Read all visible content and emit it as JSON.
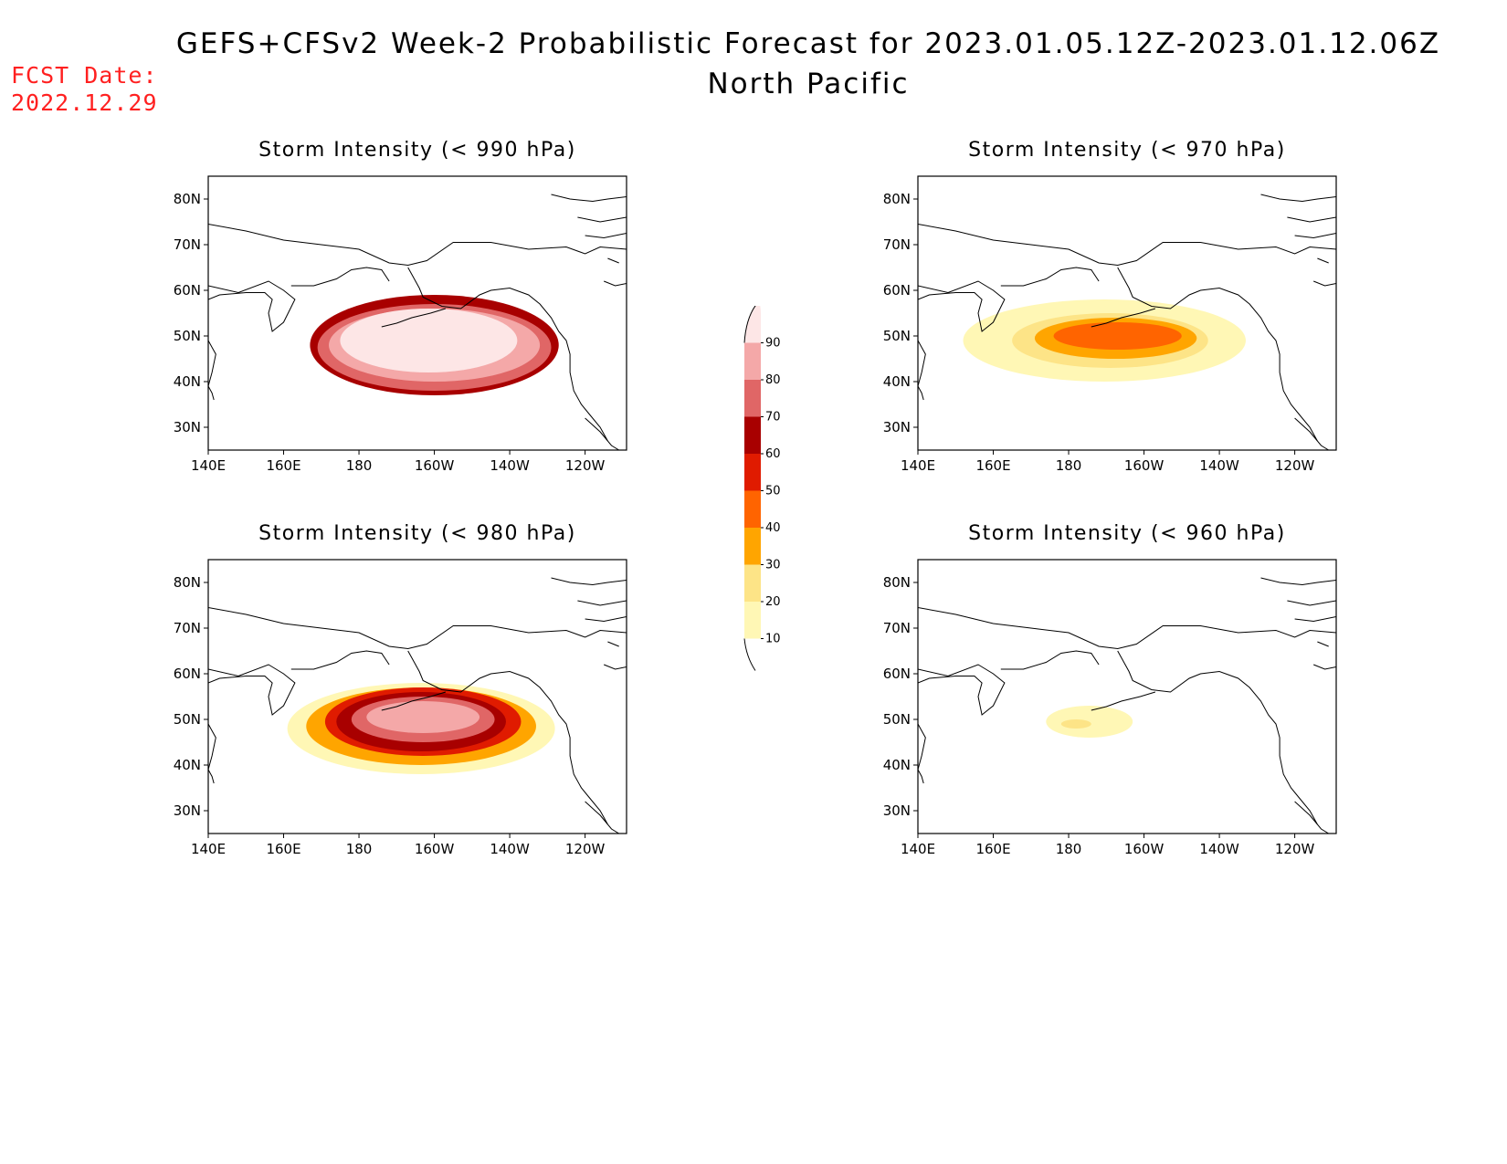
{
  "header": {
    "title": "GEFS+CFSv2 Week-2 Probabilistic Forecast for 2023.01.05.12Z-2023.01.12.06Z",
    "subtitle": "North Pacific",
    "fcst_label": "FCST Date:",
    "fcst_date": "2022.12.29"
  },
  "axes": {
    "lon_labels": [
      "140E",
      "160E",
      "180",
      "160W",
      "140W",
      "120W"
    ],
    "lat_labels": [
      "80N",
      "70N",
      "60N",
      "50N",
      "40N",
      "30N"
    ],
    "lon_values": [
      140,
      160,
      180,
      200,
      220,
      240
    ],
    "lat_values": [
      80,
      70,
      60,
      50,
      40,
      30
    ],
    "lon_range": [
      140,
      251
    ],
    "lat_range": [
      25,
      85
    ]
  },
  "colorbar": {
    "levels": [
      "10",
      "20",
      "30",
      "40",
      "50",
      "60",
      "70",
      "80",
      "90"
    ],
    "colors": [
      "#fff7b5",
      "#fde487",
      "#ffa500",
      "#ff6400",
      "#e01b00",
      "#a80000",
      "#e06666",
      "#f4a8a8",
      "#fde6e6"
    ]
  },
  "panels": [
    {
      "title": "Storm Intensity (< 990 hPa)",
      "regions": [
        {
          "level": 5,
          "lon": [
            167,
            233
          ],
          "lat": [
            37,
            59
          ]
        },
        {
          "level": 6,
          "lon": [
            169,
            231
          ],
          "lat": [
            38,
            57
          ]
        },
        {
          "level": 7,
          "lon": [
            172,
            228
          ],
          "lat": [
            40,
            56
          ]
        },
        {
          "level": 8,
          "lon": [
            175,
            222
          ],
          "lat": [
            42,
            56
          ]
        }
      ]
    },
    {
      "title": "Storm Intensity (< 970 hPa)",
      "regions": [
        {
          "level": 0,
          "lon": [
            152,
            227
          ],
          "lat": [
            40,
            58
          ]
        },
        {
          "level": 1,
          "lon": [
            165,
            217
          ],
          "lat": [
            43,
            55
          ]
        },
        {
          "level": 2,
          "lon": [
            171,
            214
          ],
          "lat": [
            45,
            54
          ]
        },
        {
          "level": 3,
          "lon": [
            176,
            210
          ],
          "lat": [
            47,
            53
          ]
        }
      ]
    },
    {
      "title": "Storm Intensity (< 980 hPa)",
      "regions": [
        {
          "level": 0,
          "lon": [
            161,
            232
          ],
          "lat": [
            38,
            58
          ]
        },
        {
          "level": 2,
          "lon": [
            166,
            227
          ],
          "lat": [
            40,
            57
          ]
        },
        {
          "level": 4,
          "lon": [
            171,
            223
          ],
          "lat": [
            42,
            57
          ]
        },
        {
          "level": 5,
          "lon": [
            174,
            219
          ],
          "lat": [
            43,
            56
          ]
        },
        {
          "level": 6,
          "lon": [
            178,
            216
          ],
          "lat": [
            45,
            55
          ]
        },
        {
          "level": 7,
          "lon": [
            182,
            212
          ],
          "lat": [
            47,
            54
          ]
        }
      ]
    },
    {
      "title": "Storm Intensity (< 960 hPa)",
      "regions": [
        {
          "level": 0,
          "lon": [
            174,
            197
          ],
          "lat": [
            46,
            53
          ]
        },
        {
          "level": 1,
          "lon": [
            178,
            186
          ],
          "lat": [
            48,
            50
          ]
        }
      ]
    }
  ]
}
